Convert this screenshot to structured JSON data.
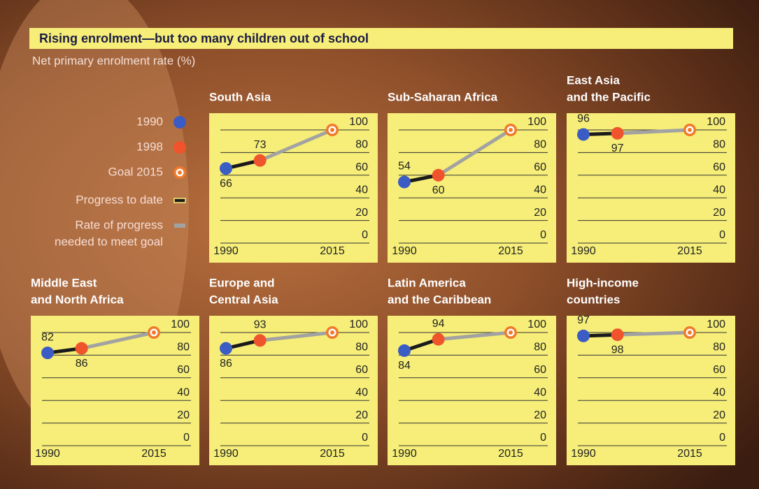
{
  "title": "Rising enrolment—but too many children out of school",
  "subtitle": "Net primary enrolment rate (%)",
  "legend": {
    "items": [
      {
        "label": [
          "1990"
        ],
        "color": "#3b5cc4"
      },
      {
        "label": [
          "1998"
        ],
        "color": "#f0542c"
      },
      {
        "label": [
          "Goal 2015"
        ],
        "color": "#f07a2a"
      },
      {
        "label": [
          "Progress to date"
        ],
        "color": "#1a1a1a"
      },
      {
        "label": [
          "Rate of progress",
          "needed to meet goal"
        ],
        "color": "#a2a2a2"
      }
    ]
  },
  "chart_data": [
    {
      "type": "line",
      "title": [
        "South Asia"
      ],
      "x": [
        1990,
        1998,
        2015
      ],
      "values": [
        66,
        73,
        100
      ],
      "xlim": [
        1990,
        2015
      ],
      "xticks": [
        1990,
        2015
      ],
      "ylim": [
        0,
        100
      ],
      "yticks": [
        0,
        20,
        40,
        60,
        80,
        100
      ]
    },
    {
      "type": "line",
      "title": [
        "Sub-Saharan Africa"
      ],
      "x": [
        1990,
        1998,
        2015
      ],
      "values": [
        54,
        60,
        100
      ],
      "xlim": [
        1990,
        2015
      ],
      "xticks": [
        1990,
        2015
      ],
      "ylim": [
        0,
        100
      ],
      "yticks": [
        0,
        20,
        40,
        60,
        80,
        100
      ]
    },
    {
      "type": "line",
      "title": [
        "East Asia",
        "and the Pacific"
      ],
      "x": [
        1990,
        1998,
        2015
      ],
      "values": [
        96,
        97,
        100
      ],
      "xlim": [
        1990,
        2015
      ],
      "xticks": [
        1990,
        2015
      ],
      "ylim": [
        0,
        100
      ],
      "yticks": [
        0,
        20,
        40,
        60,
        80,
        100
      ]
    },
    {
      "type": "line",
      "title": [
        "Middle East",
        "and North Africa"
      ],
      "x": [
        1990,
        1998,
        2015
      ],
      "values": [
        82,
        86,
        100
      ],
      "xlim": [
        1990,
        2015
      ],
      "xticks": [
        1990,
        2015
      ],
      "ylim": [
        0,
        100
      ],
      "yticks": [
        0,
        20,
        40,
        60,
        80,
        100
      ]
    },
    {
      "type": "line",
      "title": [
        "Europe and",
        "Central Asia"
      ],
      "x": [
        1990,
        1998,
        2015
      ],
      "values": [
        86,
        93,
        100
      ],
      "xlim": [
        1990,
        2015
      ],
      "xticks": [
        1990,
        2015
      ],
      "ylim": [
        0,
        100
      ],
      "yticks": [
        0,
        20,
        40,
        60,
        80,
        100
      ]
    },
    {
      "type": "line",
      "title": [
        "Latin America",
        "and the Caribbean"
      ],
      "x": [
        1990,
        1998,
        2015
      ],
      "values": [
        84,
        94,
        100
      ],
      "xlim": [
        1990,
        2015
      ],
      "xticks": [
        1990,
        2015
      ],
      "ylim": [
        0,
        100
      ],
      "yticks": [
        0,
        20,
        40,
        60,
        80,
        100
      ]
    },
    {
      "type": "line",
      "title": [
        "High-income",
        "countries"
      ],
      "x": [
        1990,
        1998,
        2015
      ],
      "values": [
        97,
        98,
        100
      ],
      "xlim": [
        1990,
        2015
      ],
      "xticks": [
        1990,
        2015
      ],
      "ylim": [
        0,
        100
      ],
      "yticks": [
        0,
        20,
        40,
        60,
        80,
        100
      ]
    }
  ]
}
